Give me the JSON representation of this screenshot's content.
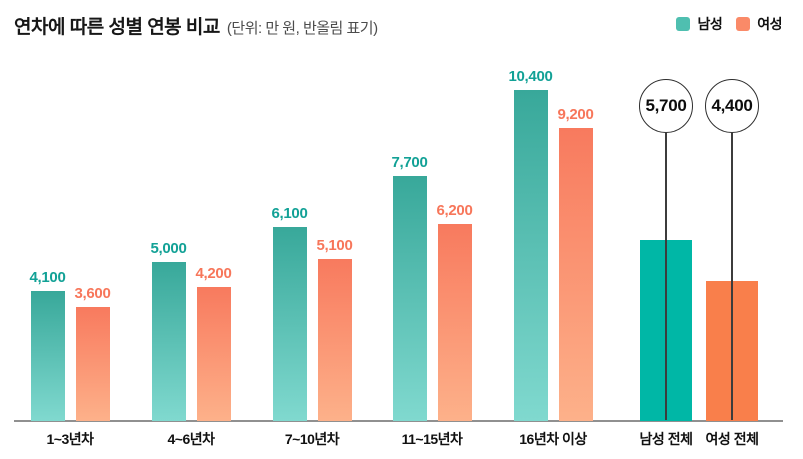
{
  "header": {
    "title": "연차에 따른 성별 연봉 비교",
    "subtitle": "(단위: 만 원, 반올림 표기)"
  },
  "legend": {
    "position": "top-right",
    "items": [
      {
        "label": "남성",
        "color": "#4fbfb0"
      },
      {
        "label": "여성",
        "color": "#fa8a68"
      }
    ]
  },
  "colors": {
    "male_gradient_top": "#38a89a",
    "male_gradient_bottom": "#80d9cf",
    "female_gradient_top": "#f87a5e",
    "female_gradient_bottom": "#fdb18a",
    "male_total_solid": "#00b7a6",
    "female_total_solid": "#f97f4b",
    "male_value_label": "#12a196",
    "female_value_label": "#f7765a",
    "baseline": "#909090",
    "stem": "#3c3c3c",
    "circle_border": "#2e2e2e"
  },
  "chart_data": {
    "type": "bar",
    "title": "연차에 따른 성별 연봉 비교",
    "unit_note": "단위: 만 원, 반올림 표기",
    "categories": [
      "1~3년차",
      "4~6년차",
      "7~10년차",
      "11~15년차",
      "16년차 이상"
    ],
    "series": [
      {
        "name": "남성",
        "values": [
          4100,
          5000,
          6100,
          7700,
          10400
        ],
        "value_labels": [
          "4,100",
          "5,000",
          "6,100",
          "7,700",
          "10,400"
        ]
      },
      {
        "name": "여성",
        "values": [
          3600,
          4200,
          5100,
          6200,
          9200
        ],
        "value_labels": [
          "3,600",
          "4,200",
          "5,100",
          "6,200",
          "9,200"
        ]
      }
    ],
    "totals": [
      {
        "label": "남성 전체",
        "series": "남성",
        "value": 5700,
        "value_label": "5,700"
      },
      {
        "label": "여성 전체",
        "series": "여성",
        "value": 4400,
        "value_label": "4,400"
      }
    ],
    "ylim": [
      0,
      10400
    ],
    "grid": false,
    "legend_position": "top-right"
  }
}
